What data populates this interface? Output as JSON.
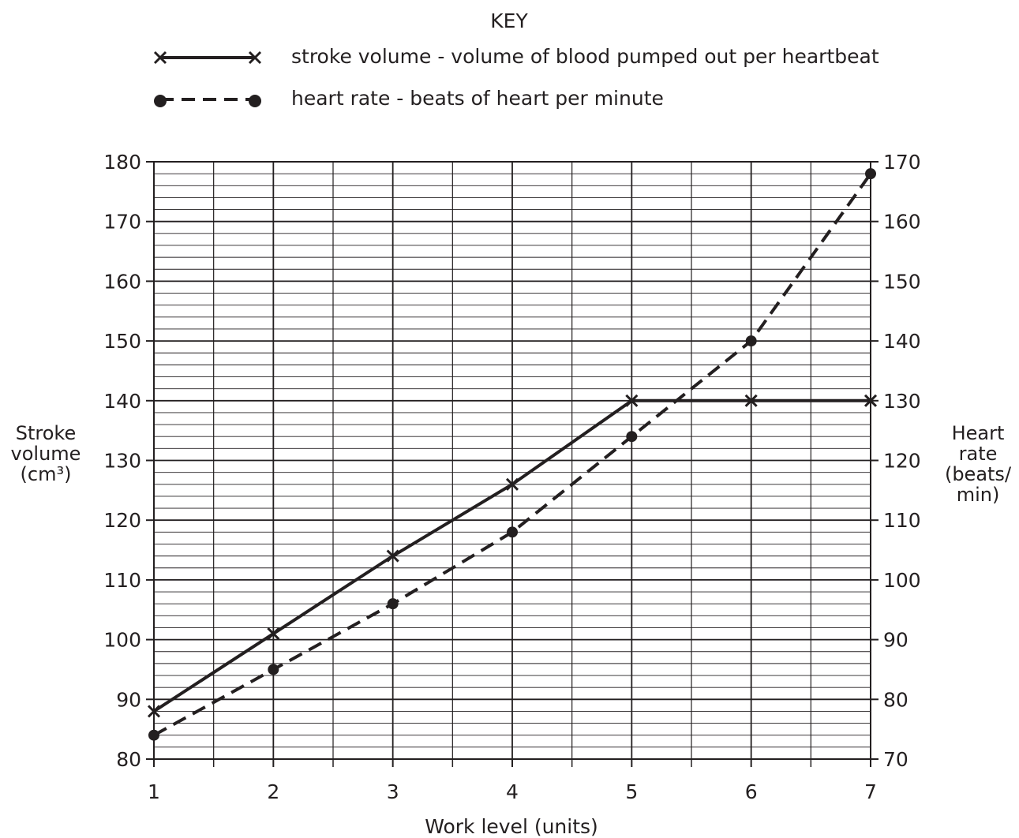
{
  "chart_data": {
    "type": "line",
    "key_title": "KEY",
    "x": [
      1,
      2,
      3,
      4,
      5,
      6,
      7
    ],
    "xlabel": "Work level (units)",
    "xlim": [
      1,
      7
    ],
    "xticks": [
      "1",
      "2",
      "3",
      "4",
      "5",
      "6",
      "7"
    ],
    "ylabel_left": [
      "Stroke",
      "volume",
      "(cm³)"
    ],
    "ylim_left": [
      80,
      180
    ],
    "yticks_left": [
      "80",
      "90",
      "100",
      "110",
      "120",
      "130",
      "140",
      "150",
      "160",
      "170",
      "180"
    ],
    "ylabel_right": [
      "Heart",
      "rate",
      "(beats/",
      "min)"
    ],
    "ylim_right": [
      70,
      170
    ],
    "yticks_right": [
      "70",
      "80",
      "90",
      "100",
      "110",
      "120",
      "130",
      "140",
      "150",
      "160",
      "170"
    ],
    "grid": true,
    "legend_position": "top",
    "series": [
      {
        "name": "stroke volume - volume of blood pumped out per heartbeat",
        "axis": "left",
        "line_style": "solid",
        "marker": "cross",
        "values": [
          88,
          101,
          114,
          126,
          140,
          140,
          140
        ]
      },
      {
        "name": "heart rate - beats of heart per minute",
        "axis": "right",
        "line_style": "dashed",
        "marker": "dot",
        "values": [
          74,
          85,
          96,
          108,
          124,
          140,
          168
        ]
      }
    ],
    "colors": {
      "ink": "#231f20",
      "background": "#ffffff"
    }
  }
}
